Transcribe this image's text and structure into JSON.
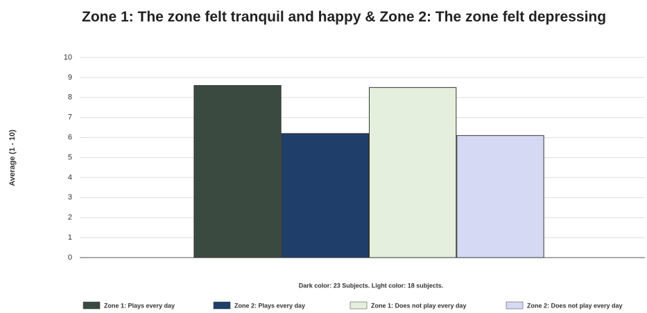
{
  "chart_data": {
    "type": "bar",
    "title": "Zone 1: The zone felt tranquil and happy & Zone 2: The zone felt depressing",
    "y_label": "Average (1 - 10)",
    "note": "Dark color: 23 Subjects. Light color: 18 subjects.",
    "categories": [
      null
    ],
    "series": [
      {
        "name": "Zone 1: Plays every day",
        "color": "#3b4a41",
        "values": [
          8.6
        ]
      },
      {
        "name": "Zone 2: Plays every day",
        "color": "#1f3e69",
        "values": [
          6.2
        ]
      },
      {
        "name": "Zone 1: Does not play every day",
        "color": "#e5efdd",
        "values": [
          8.5
        ]
      },
      {
        "name": "Zone 2: Does not play every day",
        "color": "#d6d9f4",
        "values": [
          6.1
        ]
      }
    ],
    "ylim": [
      0,
      10
    ],
    "yticks": [
      0,
      1,
      2,
      3,
      4,
      5,
      6,
      7,
      8,
      9,
      10
    ],
    "grid": true,
    "legend": "bottom"
  }
}
